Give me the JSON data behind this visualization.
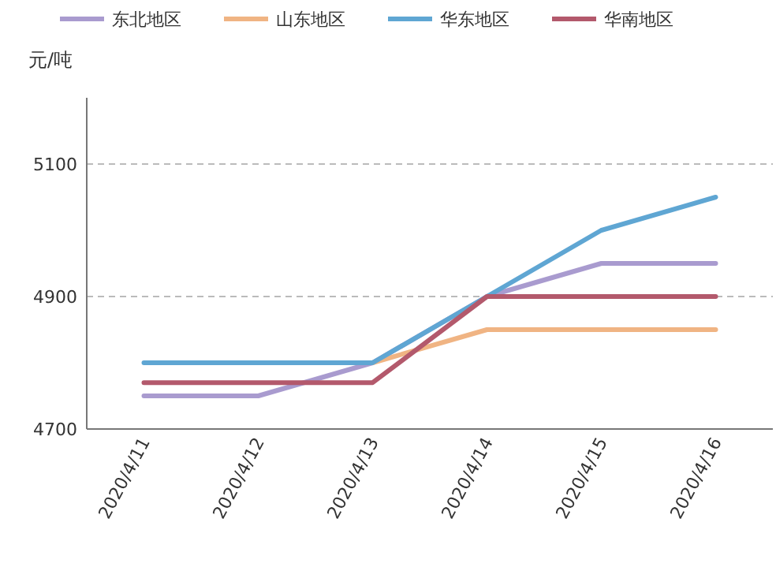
{
  "chart_data": {
    "type": "line",
    "ylabel": "元/吨",
    "categories": [
      "2020/4/11",
      "2020/4/12",
      "2020/4/13",
      "2020/4/14",
      "2020/4/15",
      "2020/4/16"
    ],
    "series": [
      {
        "name": "东北地区",
        "color": "#a99bcf",
        "values": [
          4750,
          4750,
          4800,
          4900,
          4950,
          4950
        ]
      },
      {
        "name": "山东地区",
        "color": "#f0b483",
        "values": [
          null,
          null,
          4800,
          4850,
          4850,
          4850
        ]
      },
      {
        "name": "华东地区",
        "color": "#5fa6d3",
        "values": [
          4800,
          4800,
          4800,
          4900,
          5000,
          5050
        ]
      },
      {
        "name": "华南地区",
        "color": "#b3596c",
        "values": [
          4770,
          4770,
          4770,
          4900,
          4900,
          4900
        ]
      }
    ],
    "ylim": [
      4700,
      5200
    ],
    "yticks": [
      4700,
      4900,
      5100
    ],
    "grid": "y",
    "legend": "top"
  }
}
